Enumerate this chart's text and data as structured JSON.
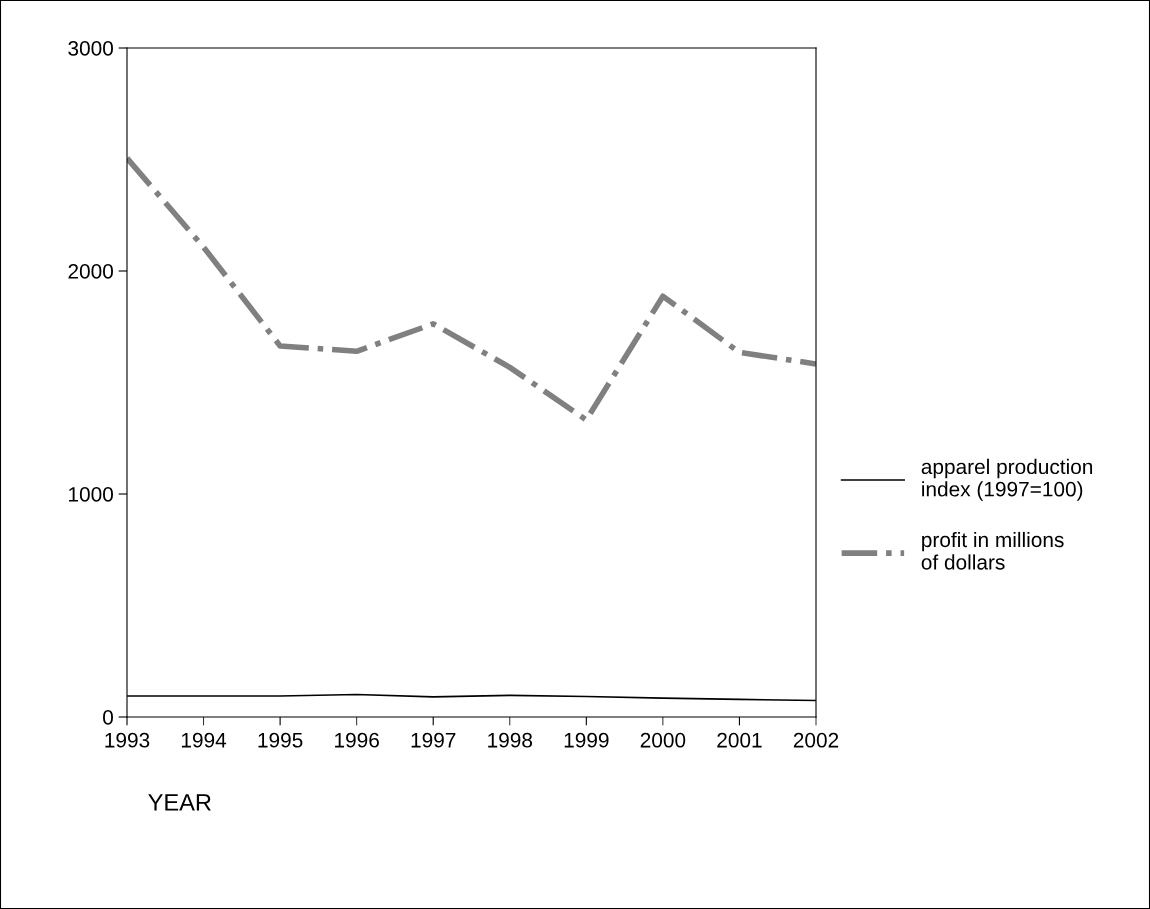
{
  "chart_data": {
    "type": "line",
    "xlabel": "YEAR",
    "x": [
      1993,
      1994,
      1995,
      1996,
      1997,
      1998,
      1999,
      2000,
      2001,
      2002
    ],
    "series": [
      {
        "name": "apparel production index (1997=100)",
        "color": "#000000",
        "line_style": "solid",
        "values": [
          94,
          94,
          94,
          101,
          90,
          97,
          92,
          85,
          79,
          74
        ]
      },
      {
        "name": "profit in millions of dollars",
        "color": "#808080",
        "line_style": "dashdot",
        "values": [
          2506,
          2107,
          1664,
          1640,
          1763,
          1568,
          1332,
          1887,
          1635,
          1583
        ]
      }
    ],
    "xlim": [
      1993,
      2002
    ],
    "xticks": [
      1993,
      1994,
      1995,
      1996,
      1997,
      1998,
      1999,
      2000,
      2001,
      2002
    ],
    "ylim": [
      0,
      3000
    ],
    "yticks": [
      0,
      1000,
      2000,
      3000
    ],
    "grid": false,
    "legend": "right",
    "marker": "none"
  }
}
